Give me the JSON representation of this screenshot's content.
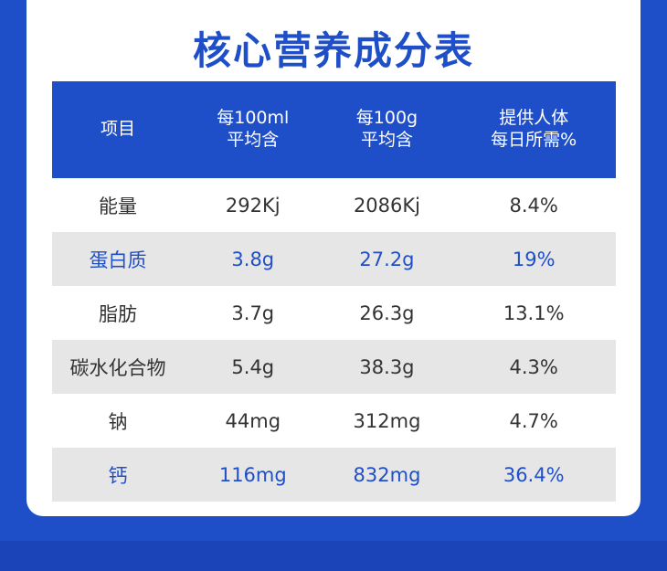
{
  "header": {
    "title": "核心营养成分表"
  },
  "table": {
    "columns": [
      "项目",
      "每100ml\n平均含",
      "每100g\n平均含",
      "提供人体\n每日所需%"
    ],
    "rows": [
      [
        "能量",
        "292Kj",
        "2086Kj",
        "8.4%"
      ],
      [
        "蛋白质",
        "3.8g",
        "27.2g",
        "19%"
      ],
      [
        "脂肪",
        "3.7g",
        "26.3g",
        "13.1%"
      ],
      [
        "碳水化合物",
        "5.4g",
        "38.3g",
        "4.3%"
      ],
      [
        "钠",
        "44mg",
        "312mg",
        "4.7%"
      ],
      [
        "钙",
        "116mg",
        "832mg",
        "36.4%"
      ]
    ]
  }
}
